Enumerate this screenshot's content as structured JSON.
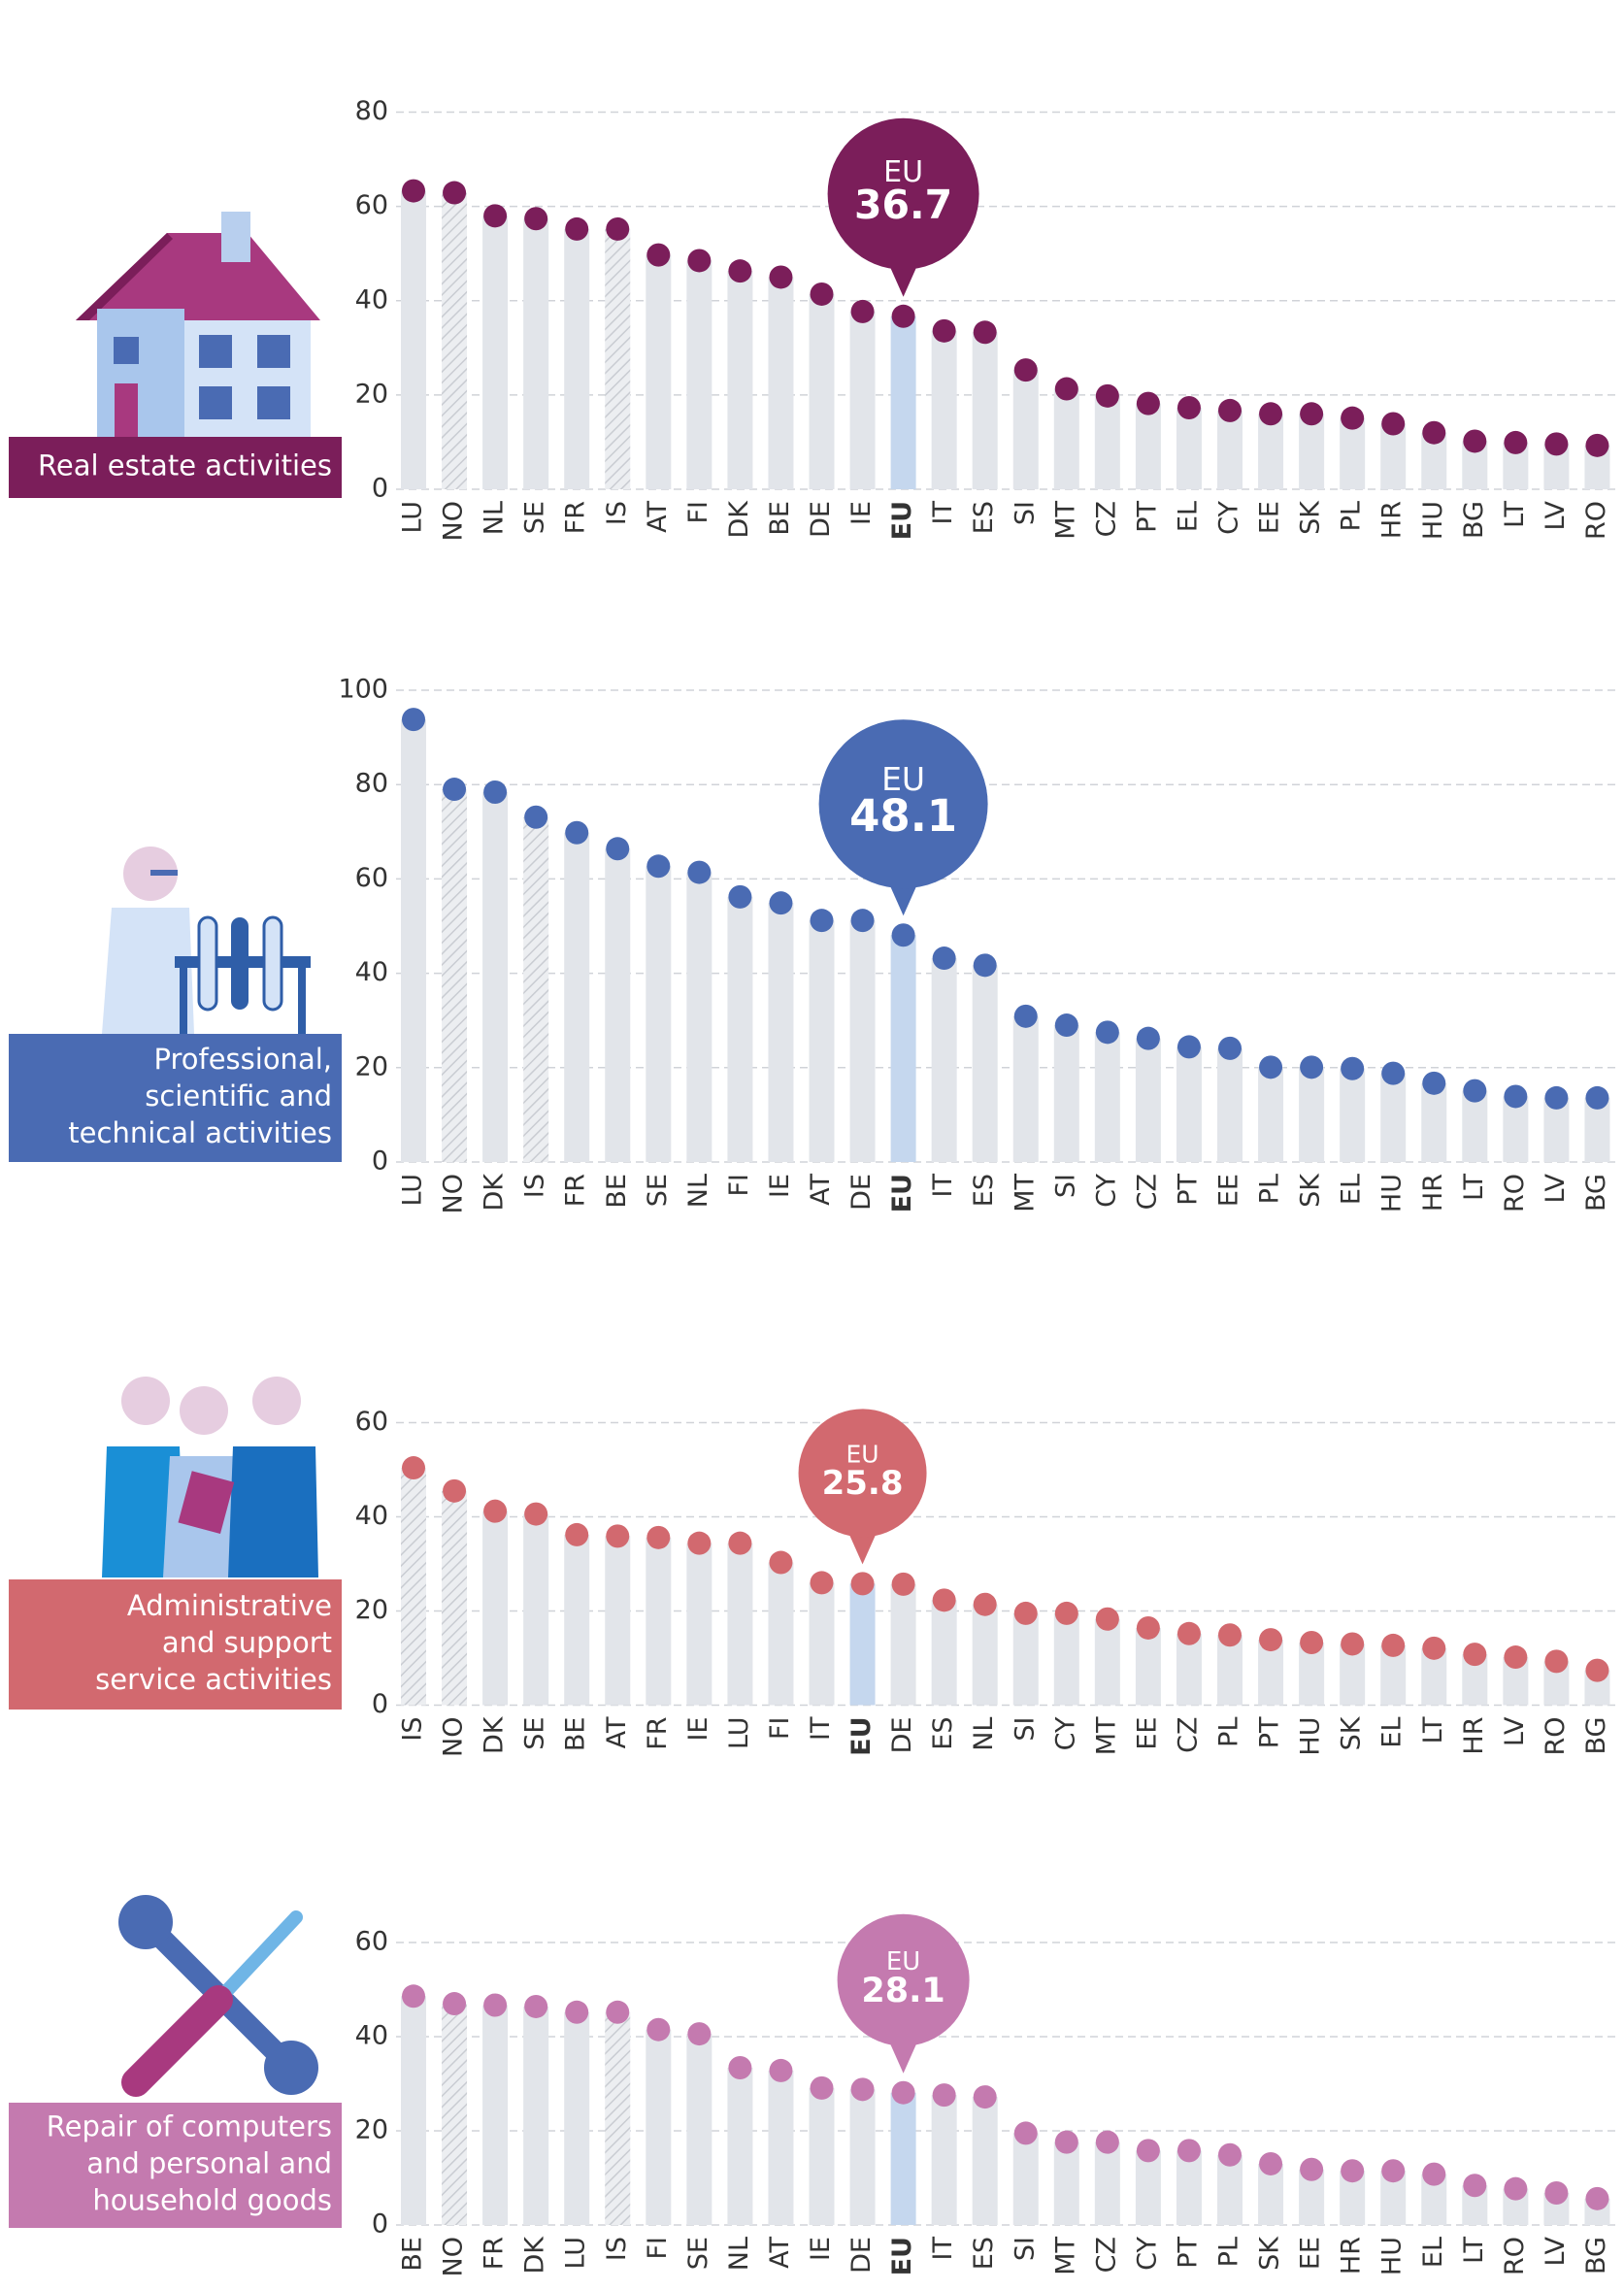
{
  "chart_data": [
    {
      "type": "lollipop",
      "title": [
        "Real estate activities"
      ],
      "color": "#7b1e5a",
      "categories": [
        "LU",
        "NO",
        "NL",
        "SE",
        "FR",
        "IS",
        "AT",
        "FI",
        "DK",
        "BE",
        "DE",
        "IE",
        "EU",
        "IT",
        "ES",
        "SI",
        "MT",
        "CZ",
        "PT",
        "EL",
        "CY",
        "EE",
        "SK",
        "PL",
        "HR",
        "HU",
        "BG",
        "LT",
        "LV",
        "RO"
      ],
      "values": [
        63.3,
        62.9,
        58,
        57.4,
        55.2,
        55.2,
        49.7,
        48.5,
        46.3,
        45,
        41.4,
        37.7,
        36.7,
        33.6,
        33.3,
        25.3,
        21.3,
        19.8,
        18.2,
        17.3,
        16.7,
        16,
        16,
        15.1,
        13.9,
        12,
        10.2,
        9.9,
        9.6,
        9.3
      ],
      "ylim": [
        0,
        80
      ],
      "yticks": [
        0,
        20,
        40,
        60,
        80
      ],
      "grid": true,
      "highlight": "EU",
      "hatched": [
        "NO",
        "IS"
      ]
    },
    {
      "type": "lollipop",
      "title": [
        "Professional,",
        "scientific and",
        "technical activities"
      ],
      "color": "#4a6bb3",
      "categories": [
        "LU",
        "NO",
        "DK",
        "IS",
        "FR",
        "BE",
        "SE",
        "NL",
        "FI",
        "IE",
        "AT",
        "DE",
        "EU",
        "IT",
        "ES",
        "MT",
        "SI",
        "CY",
        "CZ",
        "PT",
        "EE",
        "PL",
        "SK",
        "EL",
        "HU",
        "HR",
        "LT",
        "RO",
        "LV",
        "BG"
      ],
      "values": [
        93.8,
        79,
        78.4,
        73.1,
        69.8,
        66.4,
        62.7,
        61.4,
        56.2,
        54.9,
        51.2,
        51.2,
        48.1,
        43.2,
        41.7,
        30.9,
        29,
        27.5,
        26.2,
        24.4,
        24.1,
        20.1,
        20.1,
        19.8,
        18.8,
        16.7,
        15.1,
        13.9,
        13.6,
        13.6
      ],
      "ylim": [
        0,
        100
      ],
      "yticks": [
        0,
        20,
        40,
        60,
        80,
        100
      ],
      "grid": true,
      "highlight": "EU",
      "hatched": [
        "NO",
        "IS"
      ]
    },
    {
      "type": "lollipop",
      "title": [
        "Administrative",
        "and support",
        "service activities"
      ],
      "color": "#d2696f",
      "categories": [
        "IS",
        "NO",
        "DK",
        "SE",
        "BE",
        "AT",
        "FR",
        "IE",
        "LU",
        "FI",
        "IT",
        "EU",
        "DE",
        "ES",
        "NL",
        "SI",
        "CY",
        "MT",
        "EE",
        "CZ",
        "PL",
        "PT",
        "HU",
        "SK",
        "EL",
        "LT",
        "HR",
        "LV",
        "RO",
        "BG"
      ],
      "values": [
        50.4,
        45.5,
        41.2,
        40.6,
        36.2,
        35.9,
        35.6,
        34.4,
        34.4,
        30.3,
        26,
        25.8,
        25.7,
        22.3,
        21.4,
        19.5,
        19.5,
        18.3,
        16.4,
        15.2,
        14.9,
        13.9,
        13.3,
        13,
        12.7,
        12.1,
        10.8,
        10.2,
        9.3,
        7.4
      ],
      "ylim": [
        0,
        60
      ],
      "yticks": [
        0,
        20,
        40,
        60
      ],
      "grid": true,
      "highlight": "EU",
      "hatched": [
        "NO",
        "IS"
      ]
    },
    {
      "type": "lollipop",
      "title": [
        "Repair of computers",
        "and personal and",
        "household goods"
      ],
      "color": "#c47aaf",
      "categories": [
        "BE",
        "NO",
        "FR",
        "DK",
        "LU",
        "IS",
        "FI",
        "SE",
        "NL",
        "AT",
        "IE",
        "DE",
        "EU",
        "IT",
        "ES",
        "SI",
        "MT",
        "CZ",
        "CY",
        "PT",
        "PL",
        "SK",
        "EE",
        "HR",
        "HU",
        "EL",
        "LT",
        "RO",
        "LV",
        "BG"
      ],
      "values": [
        48.6,
        47,
        46.7,
        46.4,
        45.2,
        45.2,
        41.5,
        40.6,
        33.4,
        32.8,
        29.1,
        28.8,
        28.1,
        27.6,
        27.2,
        19.5,
        17.6,
        17.6,
        15.8,
        15.8,
        14.9,
        13,
        11.8,
        11.5,
        11.5,
        10.8,
        8.4,
        7.7,
        6.8,
        5.6
      ],
      "ylim": [
        0,
        60
      ],
      "yticks": [
        0,
        20,
        40,
        60
      ],
      "grid": true,
      "highlight": "EU",
      "hatched": [
        "NO",
        "IS"
      ]
    }
  ]
}
